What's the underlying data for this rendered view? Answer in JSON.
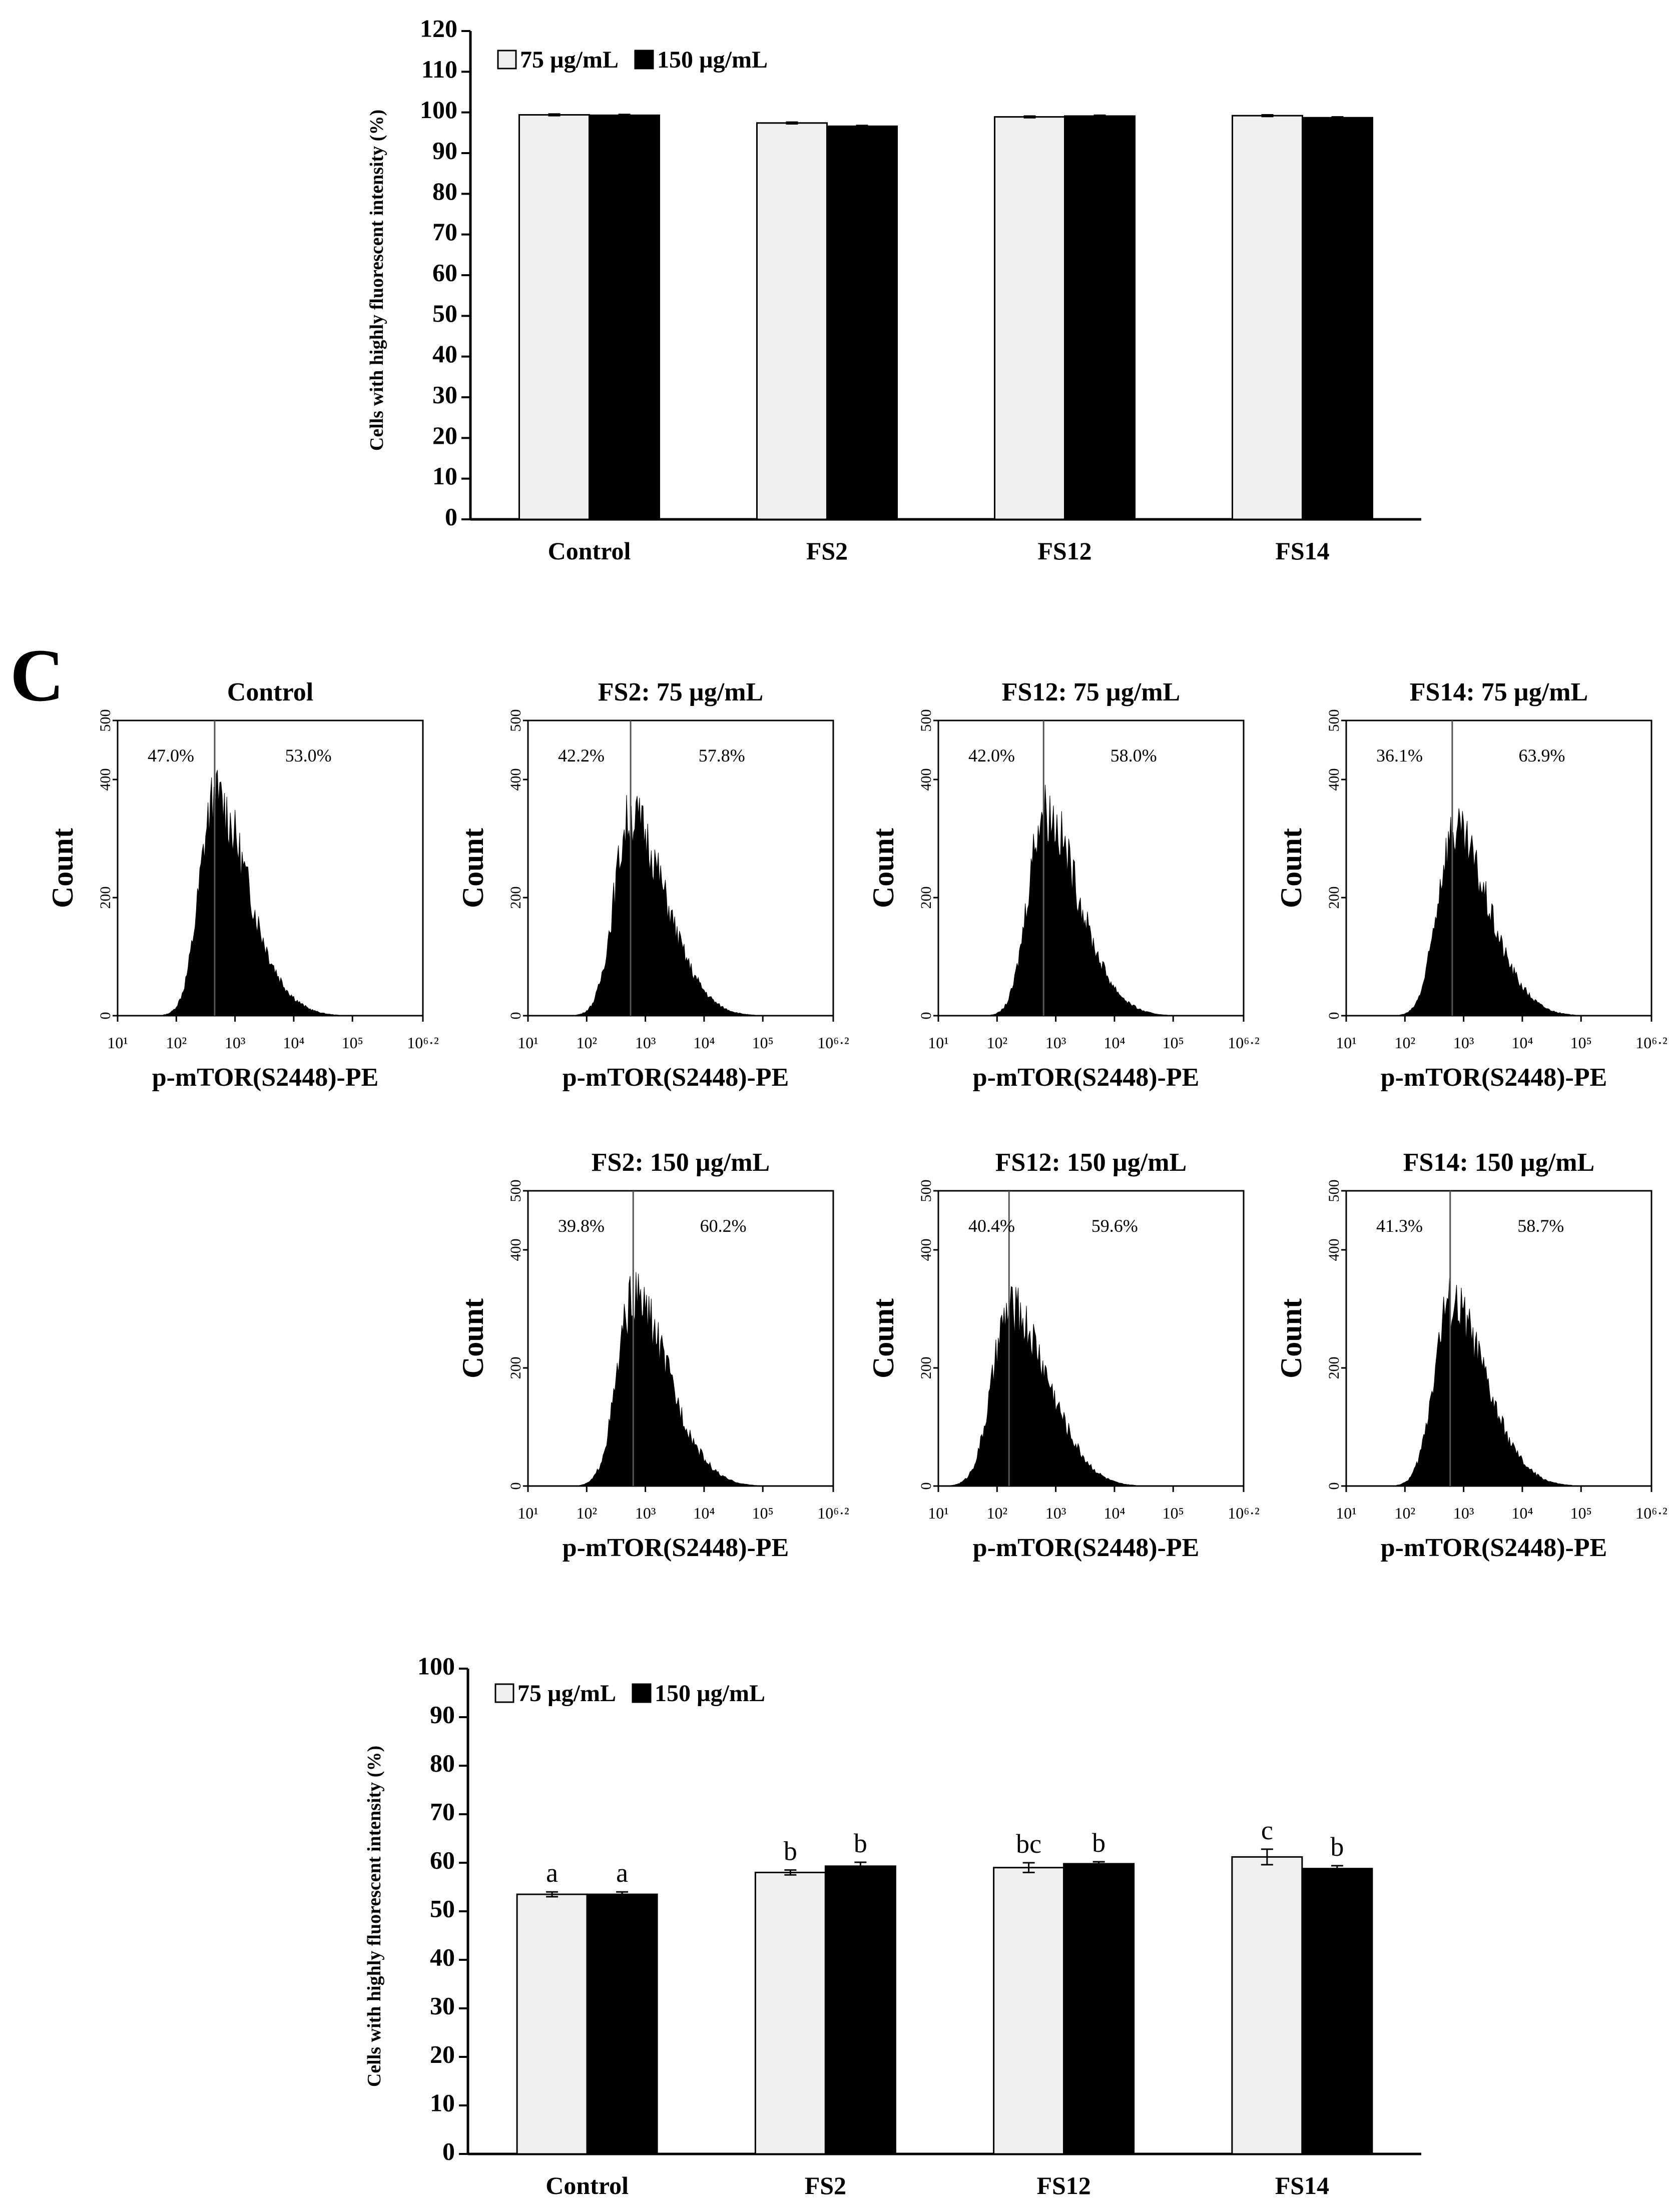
{
  "panel_label": "C",
  "colors": {
    "light_bar": "#efefef",
    "dark_bar": "#000000",
    "axis": "#000000"
  },
  "chart_data": [
    {
      "type": "bar",
      "title": "",
      "ylabel": "Cells with highly fluorescent intensity (%)",
      "xlabel": "",
      "ylim": [
        0,
        120
      ],
      "yticks": [
        0,
        10,
        20,
        30,
        40,
        50,
        60,
        70,
        80,
        90,
        100,
        110,
        120
      ],
      "categories": [
        "Control",
        "FS2",
        "FS12",
        "FS14"
      ],
      "legend_position": "top-left",
      "series": [
        {
          "name": "75 µg/mL",
          "values": [
            99.4,
            97.4,
            98.9,
            99.2
          ],
          "errors": [
            0.2,
            0.2,
            0.2,
            0.2
          ]
        },
        {
          "name": "150 µg/mL",
          "values": [
            99.3,
            96.6,
            99.1,
            98.7
          ],
          "errors": [
            0.2,
            0.2,
            0.2,
            0.2
          ]
        }
      ],
      "significance": null
    },
    {
      "type": "histogram",
      "xlabel": "p-mTOR(S2448)-PE",
      "ylabel": "Count",
      "x_scale": "log",
      "xlim": [
        10,
        1584893
      ],
      "xtick_labels": [
        "10¹",
        "10²",
        "10³",
        "10⁴",
        "10⁵",
        "10⁶·²"
      ],
      "ylim": [
        0,
        500
      ],
      "yticks": [
        0,
        200,
        400,
        500
      ],
      "panels": [
        {
          "title": "Control",
          "gate_x": 450,
          "left_pct": "47.0%",
          "right_pct": "53.0%",
          "peak_x": 450,
          "peak_count": 375,
          "spread": 0.42
        },
        {
          "title": "FS2: 75 µg/mL",
          "gate_x": 560,
          "left_pct": "42.2%",
          "right_pct": "57.8%",
          "peak_x": 550,
          "peak_count": 345,
          "spread": 0.44
        },
        {
          "title": "FS12: 75 µg/mL",
          "gate_x": 620,
          "left_pct": "42.0%",
          "right_pct": "58.0%",
          "peak_x": 620,
          "peak_count": 355,
          "spread": 0.43
        },
        {
          "title": "FS14: 75 µg/mL",
          "gate_x": 640,
          "left_pct": "36.1%",
          "right_pct": "63.9%",
          "peak_x": 660,
          "peak_count": 318,
          "spread": 0.44
        },
        {
          "title": "FS2: 150 µg/mL",
          "gate_x": 620,
          "left_pct": "39.8%",
          "right_pct": "60.2%",
          "peak_x": 620,
          "peak_count": 325,
          "spread": 0.44
        },
        {
          "title": "FS12: 150 µg/mL",
          "gate_x": 160,
          "left_pct": "40.4%",
          "right_pct": "59.6%",
          "peak_x": 165,
          "peak_count": 305,
          "spread": 0.48
        },
        {
          "title": "FS14: 150 µg/mL",
          "gate_x": 590,
          "left_pct": "41.3%",
          "right_pct": "58.7%",
          "peak_x": 580,
          "peak_count": 318,
          "spread": 0.44
        }
      ]
    },
    {
      "type": "bar",
      "title": "",
      "ylabel": "Cells with highly fluorescent intensity (%)",
      "xlabel": "",
      "ylim": [
        0,
        100
      ],
      "yticks": [
        0,
        10,
        20,
        30,
        40,
        50,
        60,
        70,
        80,
        90,
        100
      ],
      "categories": [
        "Control",
        "FS2",
        "FS12",
        "FS14"
      ],
      "legend_position": "top-left",
      "series": [
        {
          "name": "75 µg/mL",
          "values": [
            53.5,
            58.0,
            59.0,
            61.2
          ],
          "errors": [
            0.5,
            0.5,
            1.0,
            1.6
          ]
        },
        {
          "name": "150 µg/mL",
          "values": [
            53.5,
            59.3,
            59.8,
            58.8
          ],
          "errors": [
            0.5,
            0.8,
            0.4,
            0.6
          ]
        }
      ],
      "significance": [
        [
          "a",
          "a"
        ],
        [
          "b",
          "b"
        ],
        [
          "bc",
          "b"
        ],
        [
          "c",
          "b"
        ]
      ]
    }
  ]
}
